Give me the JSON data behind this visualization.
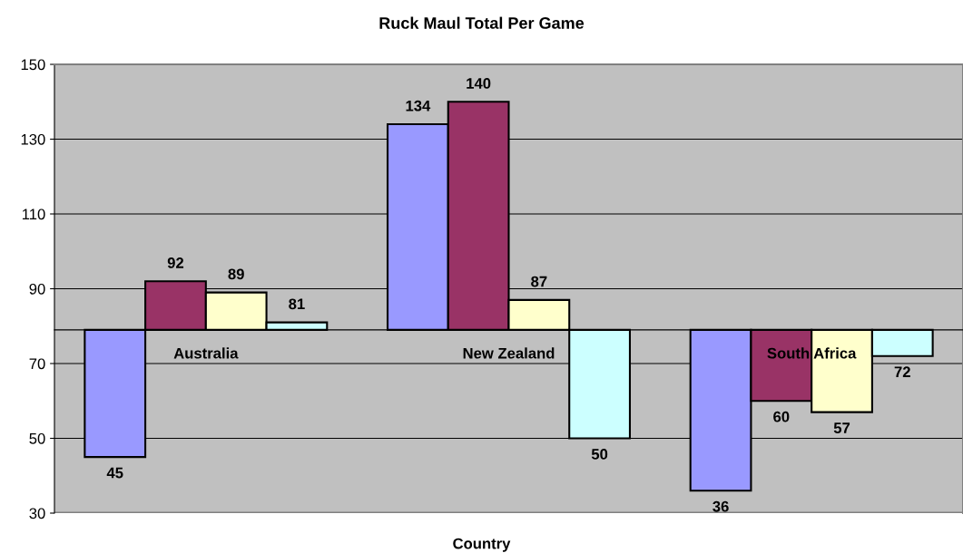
{
  "chart_data": {
    "type": "bar",
    "title": "Ruck Maul Total Per Game",
    "xlabel": "Country",
    "categories": [
      "Australia",
      "New Zealand",
      "South Africa"
    ],
    "series": [
      {
        "color": "#9999ff",
        "base": [
          79,
          79,
          79
        ],
        "values": [
          -34,
          55,
          -43
        ],
        "value_labels": [
          "45",
          "134",
          "36"
        ]
      },
      {
        "color": "#993366",
        "base": [
          79,
          79,
          79
        ],
        "values": [
          13,
          61,
          -19
        ],
        "value_labels": [
          "92",
          "140",
          "60"
        ]
      },
      {
        "color": "#ffffcc",
        "base": [
          79,
          79,
          79
        ],
        "values": [
          10,
          8,
          -22
        ],
        "value_labels": [
          "89",
          "87",
          "57"
        ]
      },
      {
        "color": "#ccffff",
        "base": [
          79,
          79,
          79
        ],
        "values": [
          2,
          -29,
          -7
        ],
        "value_labels": [
          "81",
          "50",
          "72"
        ]
      }
    ],
    "ylim": [
      30,
      150
    ],
    "yticks": [
      30,
      50,
      70,
      90,
      110,
      130,
      150
    ],
    "grid": "y",
    "legend": false
  }
}
